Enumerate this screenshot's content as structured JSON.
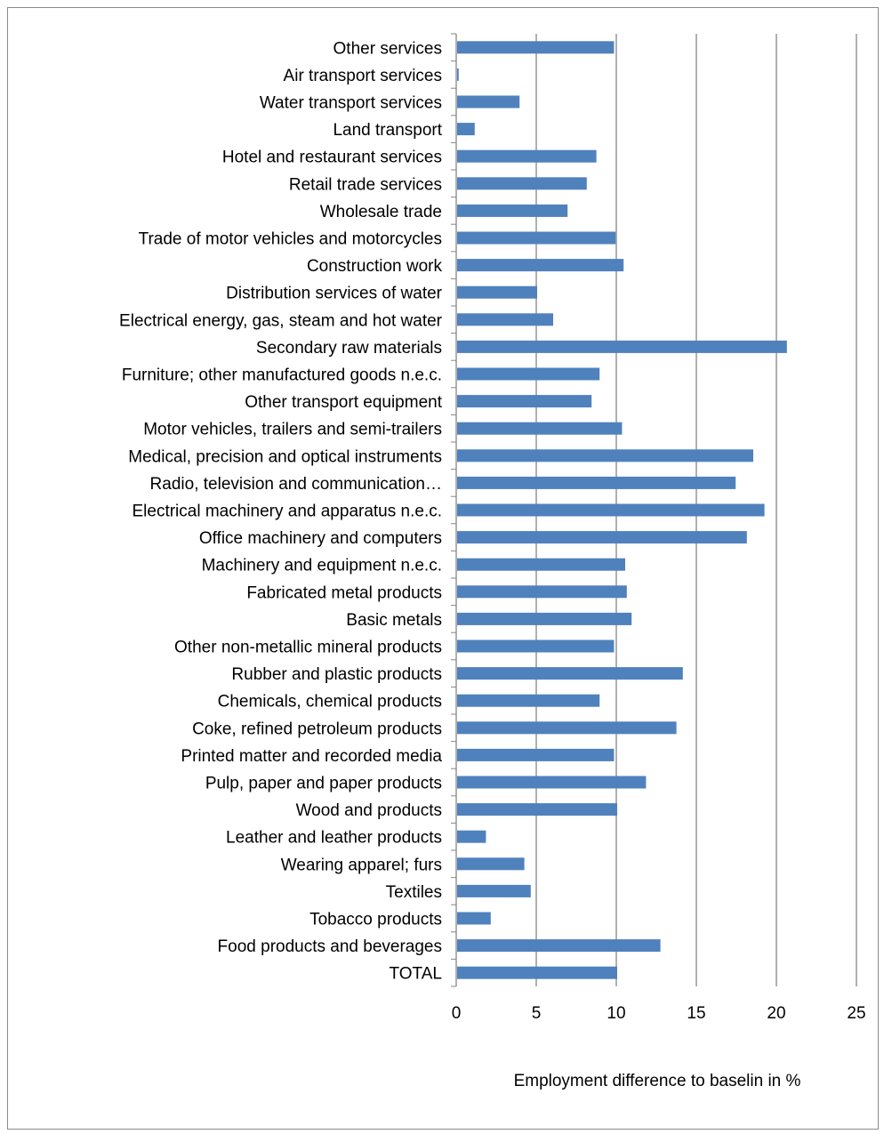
{
  "chart_data": {
    "type": "bar",
    "orientation": "horizontal",
    "categories": [
      "Other services",
      "Air transport services",
      "Water transport services",
      "Land transport",
      "Hotel and restaurant services",
      "Retail  trade services",
      "Wholesale trade",
      "Trade of motor vehicles and motorcycles",
      "Construction work",
      "Distribution services of water",
      "Electrical energy, gas, steam and hot water",
      "Secondary raw materials",
      "Furniture; other manufactured goods n.e.c.",
      "Other transport equipment",
      "Motor vehicles, trailers and semi-trailers",
      "Medical, precision and optical instruments",
      "Radio, television and communication…",
      "Electrical machinery and apparatus n.e.c.",
      "Office machinery and computers",
      "Machinery and equipment n.e.c.",
      "Fabricated metal products",
      "Basic metals",
      "Other non-metallic mineral products",
      "Rubber and plastic products",
      "Chemicals, chemical products",
      "Coke, refined petroleum products",
      "Printed matter and recorded media",
      "Pulp, paper and paper products",
      "Wood and products",
      "Leather and leather products",
      "Wearing apparel; furs",
      "Textiles",
      "Tobacco products",
      "Food products and beverages",
      "TOTAL"
    ],
    "values": [
      9.8,
      0.1,
      3.9,
      1.1,
      8.7,
      8.1,
      6.9,
      9.9,
      10.4,
      5.0,
      6.0,
      20.6,
      8.9,
      8.4,
      10.3,
      18.5,
      17.4,
      19.2,
      18.1,
      10.5,
      10.6,
      10.9,
      9.8,
      14.1,
      8.9,
      13.7,
      9.8,
      11.8,
      10.0,
      1.8,
      4.2,
      4.6,
      2.1,
      12.7,
      10.0
    ],
    "xlim": [
      0,
      25
    ],
    "xticks": [
      "0",
      "5",
      "10",
      "15",
      "20",
      "25"
    ],
    "xlabel": "Employment difference to baselin in %",
    "title": "",
    "grid": true,
    "bar_color": "#4f81bd",
    "grid_color": "#868686"
  }
}
